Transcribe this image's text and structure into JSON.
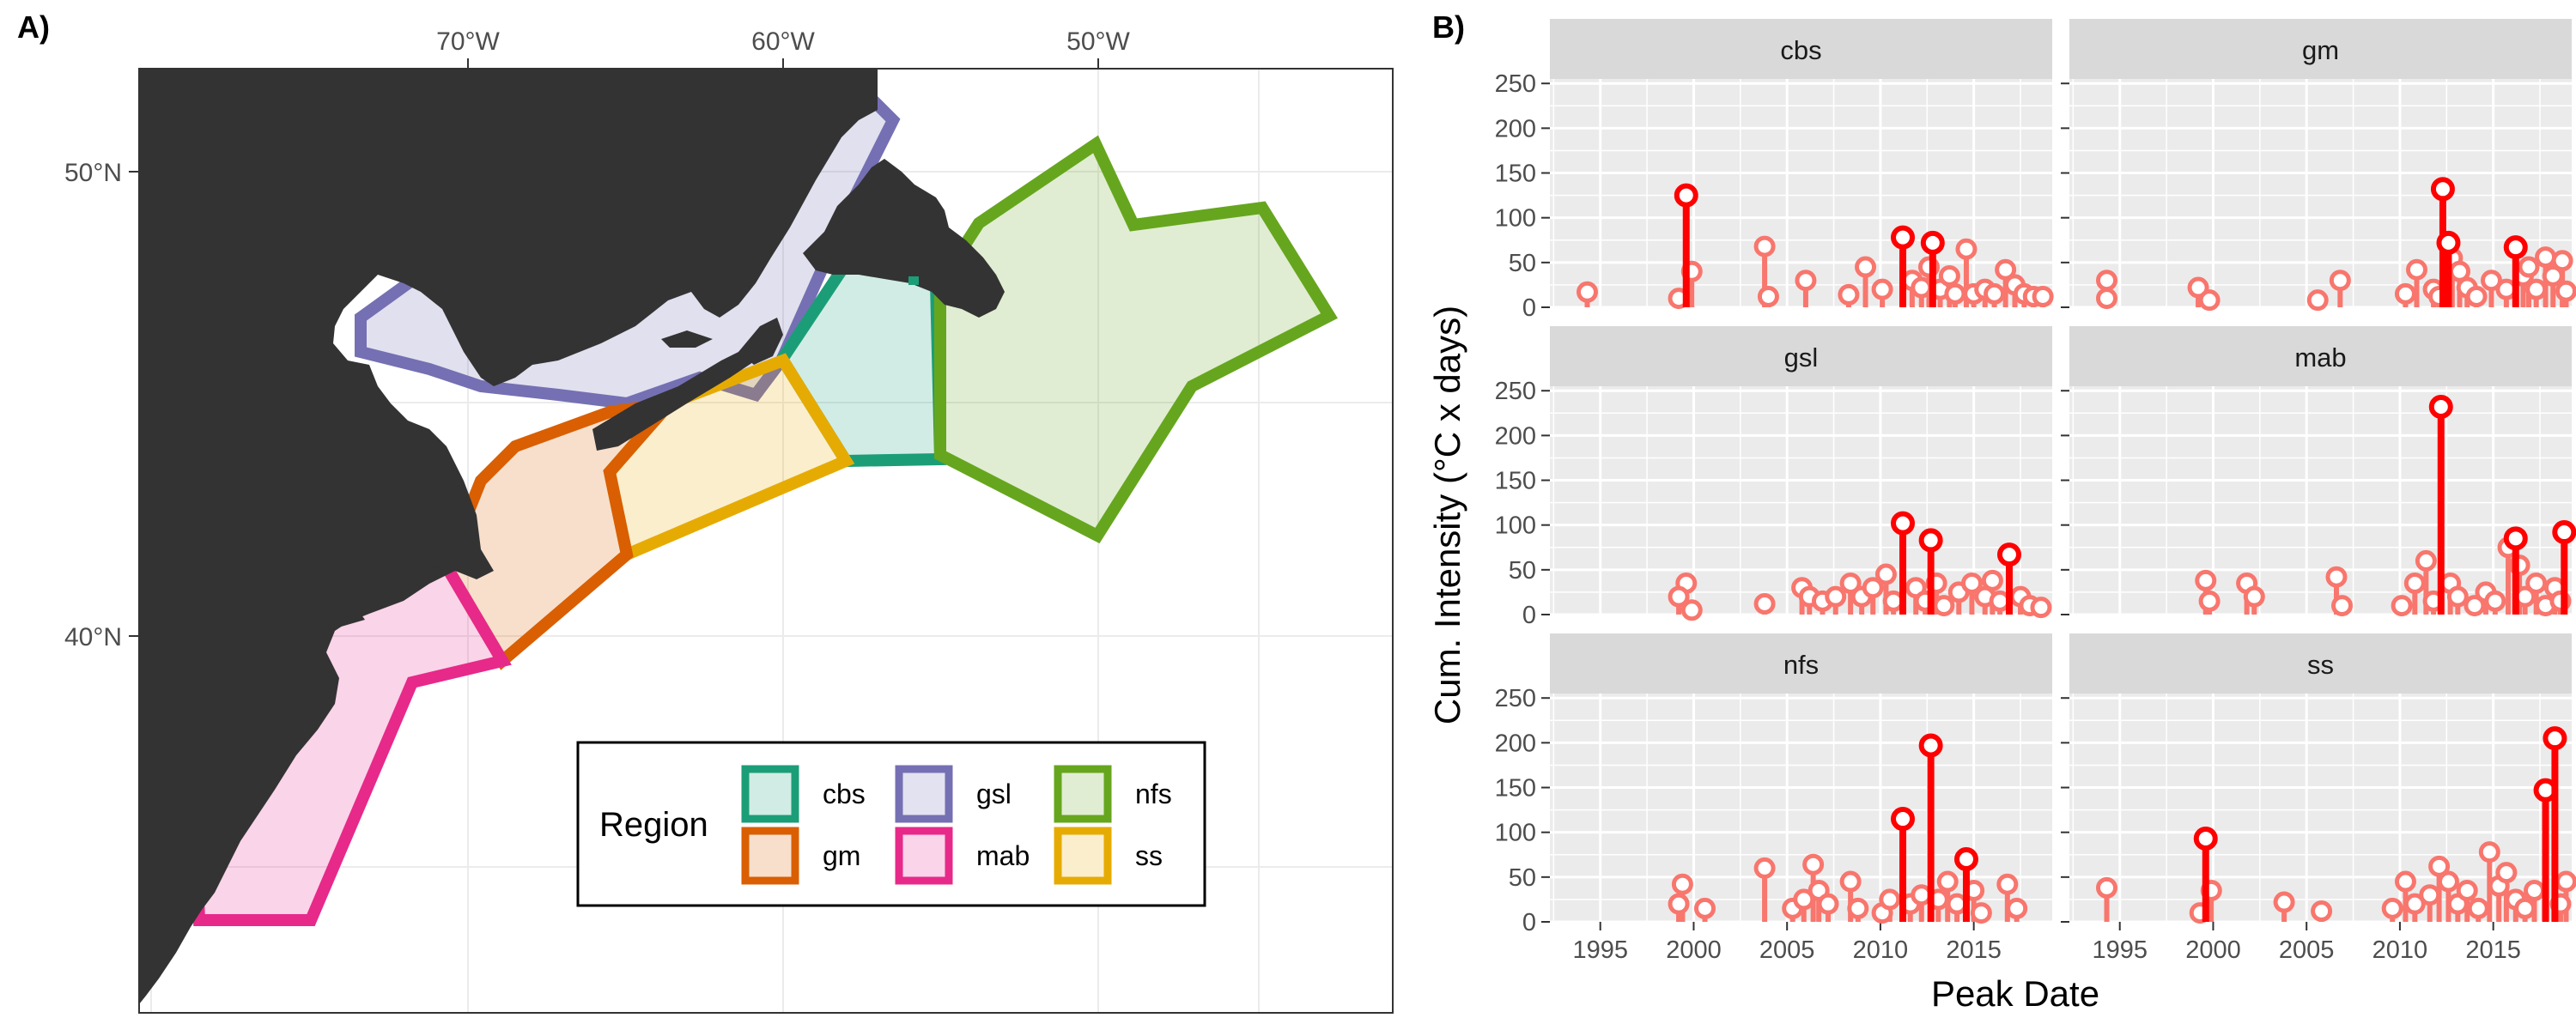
{
  "panel_a": {
    "label": "A)",
    "lon_ticks": [
      "70°W",
      "60°W",
      "50°W"
    ],
    "lat_ticks": [
      "50°N",
      "40°N"
    ],
    "legend": {
      "title": "Region",
      "items": [
        {
          "key": "cbs",
          "label": "cbs",
          "color": "#1b9e77"
        },
        {
          "key": "gsl",
          "label": "gsl",
          "color": "#7570b3"
        },
        {
          "key": "nfs",
          "label": "nfs",
          "color": "#66a61e"
        },
        {
          "key": "gm",
          "label": "gm",
          "color": "#d95f02"
        },
        {
          "key": "mab",
          "label": "mab",
          "color": "#e7298a"
        },
        {
          "key": "ss",
          "label": "ss",
          "color": "#e6ab02"
        }
      ]
    },
    "colors": {
      "land": "#333333",
      "sea": "#ffffff",
      "grid": "#ebebeb"
    }
  },
  "panel_b": {
    "label": "B)",
    "xlabel": "Peak Date",
    "ylabel": "Cum. Intensity (°C x days)",
    "x_ticks": [
      "1995",
      "2000",
      "2005",
      "2010",
      "2015"
    ],
    "y_ticks": [
      "0",
      "50",
      "100",
      "150",
      "200",
      "250"
    ],
    "colors": {
      "highlight": "#ff0000",
      "normal": "#f8766d",
      "panel_bg": "#ebebeb",
      "strip_bg": "#d9d9d9"
    }
  },
  "chart_data": {
    "type": "scatter",
    "style": "lollipop",
    "x_units": "year",
    "xlim": [
      1992.3,
      2019.2
    ],
    "ylim": [
      0,
      255
    ],
    "facets": [
      {
        "name": "cbs",
        "highlight": [
          [
            1999.6,
            125
          ],
          [
            2011.2,
            78
          ],
          [
            2012.8,
            72
          ]
        ],
        "points": [
          [
            1994.3,
            17
          ],
          [
            1999.2,
            10
          ],
          [
            1999.9,
            40
          ],
          [
            2003.8,
            68
          ],
          [
            2004.0,
            12
          ],
          [
            2006.0,
            30
          ],
          [
            2008.3,
            14
          ],
          [
            2009.2,
            45
          ],
          [
            2010.1,
            20
          ],
          [
            2011.7,
            30
          ],
          [
            2012.2,
            22
          ],
          [
            2012.6,
            45
          ],
          [
            2013.2,
            20
          ],
          [
            2013.7,
            35
          ],
          [
            2014.0,
            15
          ],
          [
            2014.6,
            65
          ],
          [
            2015.0,
            15
          ],
          [
            2015.6,
            20
          ],
          [
            2016.1,
            15
          ],
          [
            2016.7,
            42
          ],
          [
            2017.2,
            25
          ],
          [
            2017.7,
            15
          ],
          [
            2018.2,
            12
          ],
          [
            2018.7,
            12
          ]
        ]
      },
      {
        "name": "gm",
        "highlight": [
          [
            2012.3,
            132
          ],
          [
            2012.6,
            72
          ],
          [
            2016.2,
            67
          ]
        ],
        "points": [
          [
            1994.3,
            30
          ],
          [
            1994.3,
            10
          ],
          [
            1999.2,
            22
          ],
          [
            1999.8,
            8
          ],
          [
            2005.6,
            8
          ],
          [
            2006.8,
            30
          ],
          [
            2010.3,
            15
          ],
          [
            2010.9,
            42
          ],
          [
            2011.8,
            20
          ],
          [
            2012.1,
            12
          ],
          [
            2012.8,
            55
          ],
          [
            2013.2,
            40
          ],
          [
            2013.6,
            22
          ],
          [
            2014.1,
            12
          ],
          [
            2014.9,
            30
          ],
          [
            2015.7,
            20
          ],
          [
            2016.6,
            35
          ],
          [
            2016.9,
            45
          ],
          [
            2017.3,
            20
          ],
          [
            2017.8,
            56
          ],
          [
            2018.2,
            35
          ],
          [
            2018.7,
            52
          ],
          [
            2018.9,
            18
          ]
        ]
      },
      {
        "name": "gsl",
        "highlight": [
          [
            2011.2,
            102
          ],
          [
            2012.7,
            83
          ],
          [
            2016.9,
            67
          ]
        ],
        "points": [
          [
            1999.6,
            35
          ],
          [
            1999.2,
            20
          ],
          [
            1999.9,
            5
          ],
          [
            2003.8,
            12
          ],
          [
            2005.8,
            30
          ],
          [
            2006.2,
            20
          ],
          [
            2006.9,
            15
          ],
          [
            2007.6,
            20
          ],
          [
            2008.4,
            35
          ],
          [
            2009.0,
            20
          ],
          [
            2009.6,
            30
          ],
          [
            2010.3,
            45
          ],
          [
            2010.7,
            15
          ],
          [
            2011.9,
            30
          ],
          [
            2012.4,
            15
          ],
          [
            2013.0,
            35
          ],
          [
            2013.4,
            10
          ],
          [
            2014.2,
            25
          ],
          [
            2014.9,
            35
          ],
          [
            2015.6,
            20
          ],
          [
            2016.0,
            38
          ],
          [
            2016.4,
            15
          ],
          [
            2017.5,
            20
          ],
          [
            2018.0,
            10
          ],
          [
            2018.6,
            8
          ]
        ]
      },
      {
        "name": "mab",
        "highlight": [
          [
            2012.2,
            232
          ],
          [
            2016.2,
            85
          ],
          [
            2018.8,
            92
          ]
        ],
        "points": [
          [
            1999.6,
            38
          ],
          [
            1999.8,
            15
          ],
          [
            2001.8,
            35
          ],
          [
            2002.2,
            20
          ],
          [
            2006.6,
            42
          ],
          [
            2006.9,
            10
          ],
          [
            2010.1,
            10
          ],
          [
            2010.8,
            35
          ],
          [
            2011.4,
            60
          ],
          [
            2011.8,
            15
          ],
          [
            2012.7,
            35
          ],
          [
            2013.1,
            20
          ],
          [
            2014.0,
            10
          ],
          [
            2014.6,
            25
          ],
          [
            2015.1,
            15
          ],
          [
            2015.8,
            75
          ],
          [
            2016.4,
            55
          ],
          [
            2016.7,
            20
          ],
          [
            2017.3,
            35
          ],
          [
            2017.8,
            10
          ],
          [
            2018.3,
            30
          ],
          [
            2018.6,
            15
          ]
        ]
      },
      {
        "name": "nfs",
        "highlight": [
          [
            2011.2,
            115
          ],
          [
            2012.7,
            197
          ],
          [
            2014.6,
            70
          ]
        ],
        "points": [
          [
            1999.4,
            42
          ],
          [
            1999.2,
            20
          ],
          [
            2000.6,
            15
          ],
          [
            2003.8,
            60
          ],
          [
            2005.3,
            15
          ],
          [
            2005.9,
            25
          ],
          [
            2006.4,
            64
          ],
          [
            2006.7,
            35
          ],
          [
            2007.2,
            20
          ],
          [
            2008.4,
            45
          ],
          [
            2008.8,
            15
          ],
          [
            2010.1,
            10
          ],
          [
            2010.5,
            25
          ],
          [
            2011.6,
            20
          ],
          [
            2012.2,
            30
          ],
          [
            2013.1,
            25
          ],
          [
            2013.6,
            45
          ],
          [
            2014.1,
            20
          ],
          [
            2015.0,
            35
          ],
          [
            2015.4,
            10
          ],
          [
            2016.8,
            42
          ],
          [
            2017.3,
            15
          ]
        ]
      },
      {
        "name": "ss",
        "highlight": [
          [
            1999.6,
            93
          ],
          [
            2017.8,
            147
          ],
          [
            2018.3,
            205
          ]
        ],
        "points": [
          [
            1994.3,
            38
          ],
          [
            1999.3,
            10
          ],
          [
            1999.9,
            35
          ],
          [
            2003.8,
            22
          ],
          [
            2005.8,
            12
          ],
          [
            2009.6,
            15
          ],
          [
            2010.3,
            45
          ],
          [
            2010.8,
            20
          ],
          [
            2011.6,
            30
          ],
          [
            2012.1,
            62
          ],
          [
            2012.6,
            45
          ],
          [
            2013.1,
            20
          ],
          [
            2013.6,
            35
          ],
          [
            2014.2,
            15
          ],
          [
            2014.8,
            78
          ],
          [
            2015.3,
            40
          ],
          [
            2015.7,
            55
          ],
          [
            2016.2,
            25
          ],
          [
            2016.7,
            15
          ],
          [
            2017.2,
            35
          ],
          [
            2018.6,
            20
          ],
          [
            2018.9,
            45
          ]
        ]
      }
    ]
  }
}
